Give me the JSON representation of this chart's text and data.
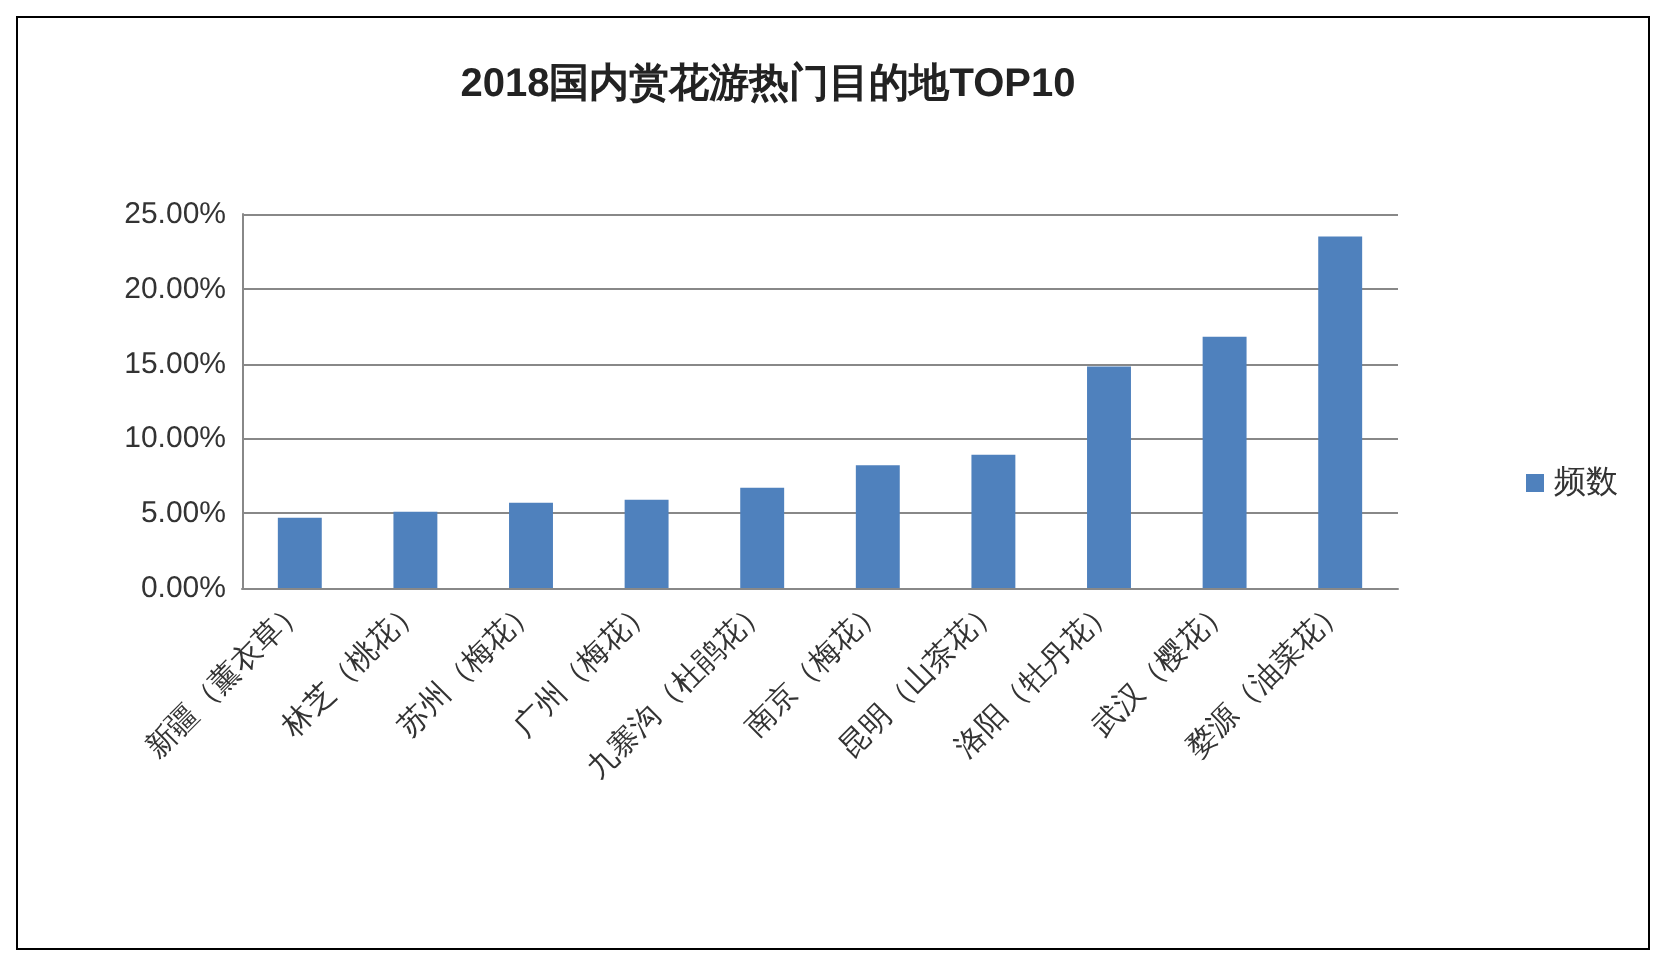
{
  "chart_data": {
    "type": "bar",
    "title": "2018国内赏花游热门目的地TOP10",
    "categories": [
      "新疆（薰衣草）",
      "林芝（桃花）",
      "苏州（梅花）",
      "广州（梅花）",
      "九寨沟（杜鹃花）",
      "南京（梅花）",
      "昆明（山茶花）",
      "洛阳（牡丹花）",
      "武汉（樱花）",
      "婺源（油菜花）"
    ],
    "series": [
      {
        "name": "频数",
        "color": "#4f81bd",
        "values": [
          4.7,
          5.1,
          5.7,
          5.9,
          6.7,
          8.2,
          8.9,
          14.8,
          16.8,
          23.5
        ]
      }
    ],
    "ylim": [
      0,
      25
    ],
    "yticks": [
      {
        "value": 0,
        "label": "0.00%"
      },
      {
        "value": 5,
        "label": "5.00%"
      },
      {
        "value": 10,
        "label": "10.00%"
      },
      {
        "value": 15,
        "label": "15.00%"
      },
      {
        "value": 20,
        "label": "20.00%"
      },
      {
        "value": 25,
        "label": "25.00%"
      }
    ],
    "grid": "y",
    "legend": "right"
  }
}
